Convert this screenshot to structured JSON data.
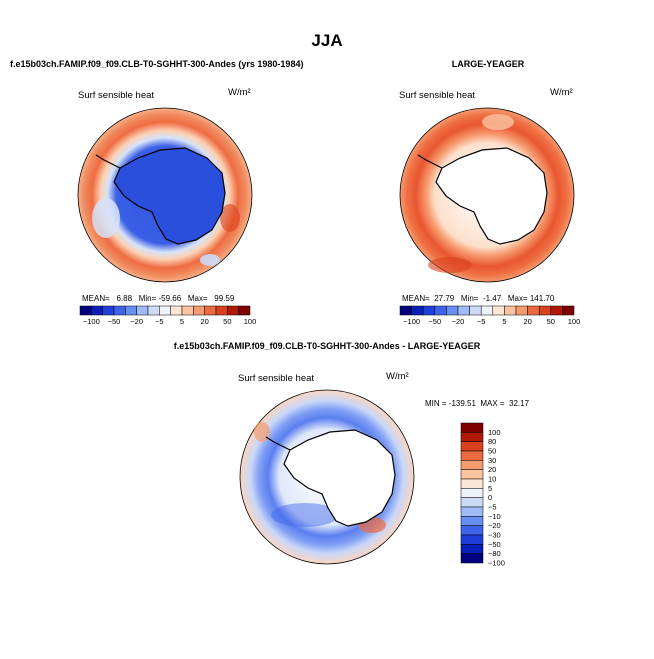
{
  "page_title": "JJA",
  "chart_data": [
    {
      "type": "heatmap",
      "title": "f.e15b03ch.FAMIP.f09_f09.CLB-T0-SGHHT-300-Andes (yrs 1980-1984)",
      "subtitle": "Surf sensible heat",
      "units": "W/m²",
      "projection": "polar-stereographic-south",
      "stats": {
        "mean": 6.88,
        "min": -59.66,
        "max": 99.59
      },
      "stats_text": "MEAN=   6.88   Min= -59.66   Max=   99.59",
      "colorbar": {
        "orientation": "horizontal",
        "levels": [
          -100,
          -80,
          -50,
          -30,
          -20,
          -10,
          -5,
          0,
          5,
          10,
          20,
          30,
          50,
          80,
          100
        ],
        "tick_labels": [
          "−100",
          "−50",
          "−20",
          "−5",
          "5",
          "20",
          "50",
          "100"
        ]
      }
    },
    {
      "type": "heatmap",
      "title": "LARGE-YEAGER",
      "subtitle": "Surf sensible heat",
      "units": "W/m²",
      "projection": "polar-stereographic-south",
      "stats": {
        "mean": 27.79,
        "min": -1.47,
        "max": 141.7
      },
      "stats_text": "MEAN=  27.79   Min=  -1.47   Max= 141.70",
      "colorbar": {
        "orientation": "horizontal",
        "levels": [
          -100,
          -80,
          -50,
          -30,
          -20,
          -10,
          -5,
          0,
          5,
          10,
          20,
          30,
          50,
          80,
          100
        ],
        "tick_labels": [
          "−100",
          "−50",
          "−20",
          "−5",
          "5",
          "20",
          "50",
          "100"
        ]
      }
    },
    {
      "type": "heatmap",
      "title": "f.e15b03ch.FAMIP.f09_f09.CLB-T0-SGHHT-300-Andes - LARGE-YEAGER",
      "subtitle": "Surf sensible heat",
      "units": "W/m²",
      "projection": "polar-stereographic-south",
      "stats": {
        "min": -139.51,
        "max": 32.17
      },
      "stats_text": "MIN = -139.51  MAX =  32.17",
      "colorbar": {
        "orientation": "vertical",
        "levels": [
          100,
          80,
          50,
          30,
          20,
          10,
          5,
          0,
          -5,
          -10,
          -20,
          -30,
          -50,
          -80,
          -100
        ],
        "tick_labels": [
          "100",
          "80",
          "50",
          "30",
          "20",
          "10",
          "5",
          "0",
          "−5",
          "−10",
          "−20",
          "−30",
          "−50",
          "−80",
          "−100"
        ]
      }
    }
  ],
  "palette": {
    "diverging": [
      "#00007f",
      "#0a1fb8",
      "#1f3fd9",
      "#3e63ea",
      "#6a8ff3",
      "#9ebbf8",
      "#cbdcf9",
      "#eef2fb",
      "#fde5d3",
      "#fbc4a1",
      "#f59b70",
      "#ec6a40",
      "#d8411c",
      "#b01808",
      "#7f0000"
    ],
    "land_white": "#ffffff",
    "coast": "#000000"
  }
}
